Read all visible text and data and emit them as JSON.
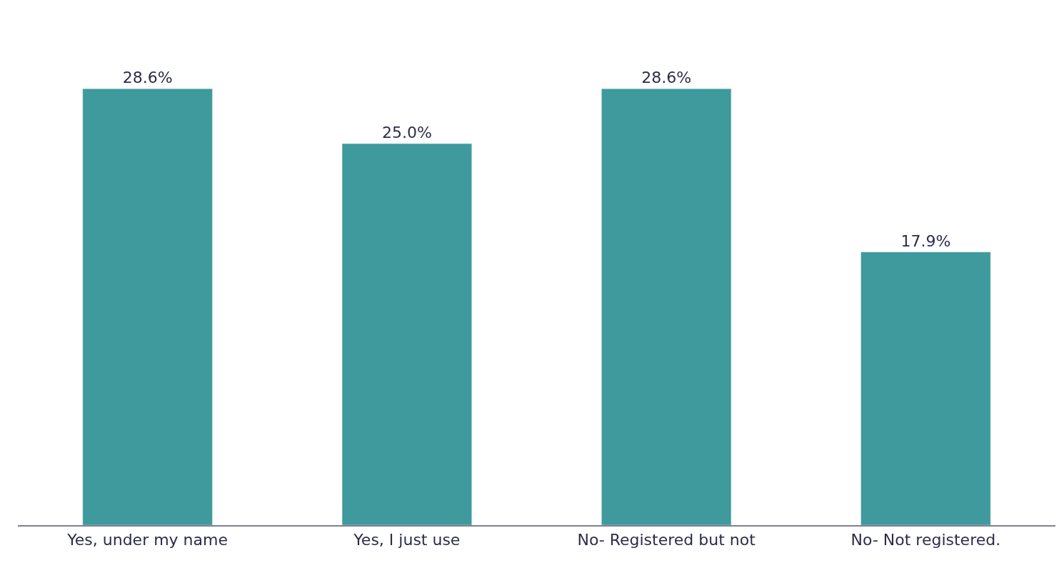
{
  "chart_data": {
    "type": "bar",
    "categories": [
      "Yes, under my name",
      "Yes, I just use",
      "No- Registered but not",
      "No- Not registered."
    ],
    "values": [
      28.6,
      25.0,
      28.6,
      17.9
    ],
    "value_labels": [
      "28.6%",
      "25.0%",
      "28.6%",
      "17.9%"
    ],
    "color": "#3e9a9c",
    "legend": false
  }
}
